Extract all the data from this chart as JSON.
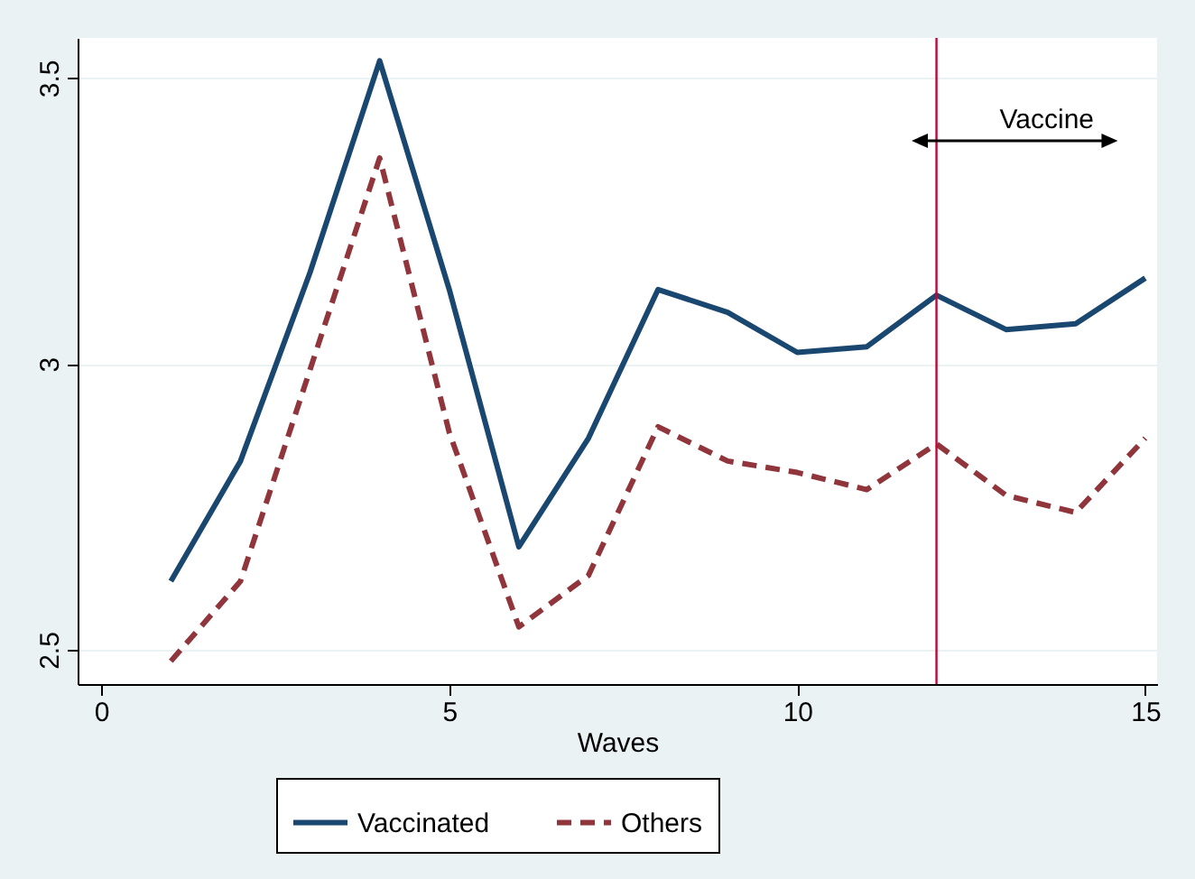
{
  "chart_data": {
    "type": "line",
    "xlabel": "Waves",
    "x": [
      1,
      2,
      3,
      4,
      5,
      6,
      7,
      8,
      9,
      10,
      11,
      12,
      13,
      14,
      15
    ],
    "series": [
      {
        "name": "Vaccinated",
        "color": "#1a476f",
        "line_style": "solid",
        "values": [
          2.62,
          2.83,
          3.16,
          3.53,
          3.13,
          2.68,
          2.87,
          3.13,
          3.09,
          3.02,
          3.03,
          3.12,
          3.06,
          3.07,
          3.15
        ]
      },
      {
        "name": "Others",
        "color": "#90353b",
        "line_style": "dashed",
        "values": [
          2.48,
          2.62,
          2.99,
          3.36,
          2.88,
          2.54,
          2.63,
          2.89,
          2.83,
          2.81,
          2.78,
          2.86,
          2.77,
          2.74,
          2.87
        ]
      }
    ],
    "xlim": [
      -0.34,
      15.17
    ],
    "xticks": [
      0,
      5,
      10,
      15
    ],
    "ylim": [
      2.44,
      3.57
    ],
    "yticks": [
      2.5,
      3,
      3.5
    ],
    "ref_lines": [
      {
        "axis": "x",
        "value": 12,
        "color": "#c10534"
      }
    ],
    "annotations": [
      "Vaccine"
    ],
    "grid": "y",
    "legend": "bottom"
  }
}
